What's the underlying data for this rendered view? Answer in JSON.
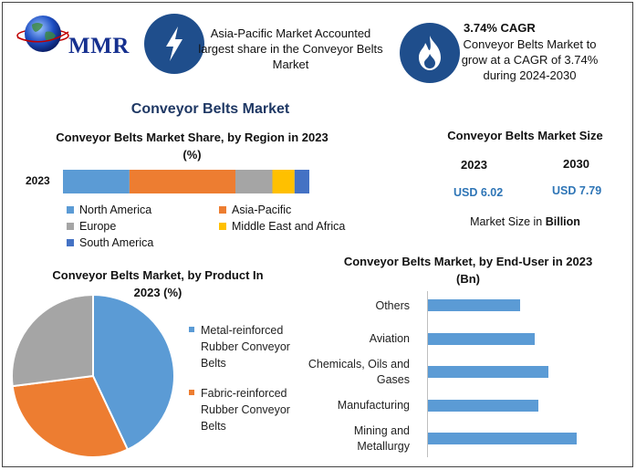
{
  "header": {
    "logo_text": "MMR",
    "box1": {
      "icon": "lightning-icon",
      "text": "Asia-Pacific Market Accounted largest share in the Conveyor Belts Market"
    },
    "box2": {
      "icon": "flame-icon",
      "headline": "3.74% CAGR",
      "text": "Conveyor Belts Market to grow at a CAGR of 3.74% during 2024-2030"
    }
  },
  "main_title": "Conveyor Belts Market",
  "market_size": {
    "title": "Conveyor Belts Market Size",
    "year_a": "2023",
    "year_b": "2030",
    "value_a": "USD 6.02",
    "value_b": "USD 7.79",
    "note_prefix": "Market Size in ",
    "note_unit": "Billion"
  },
  "colors": {
    "north_america": "#5b9bd5",
    "asia_pacific": "#ed7d31",
    "europe": "#a5a5a5",
    "mea": "#ffc000",
    "south_america": "#4472c4",
    "metal_reinforced": "#5b9bd5",
    "fabric_reinforced": "#ed7d31",
    "third_slice": "#a5a5a5",
    "end_user_bar": "#5b9bd5"
  },
  "chart_data": [
    {
      "type": "bar",
      "orientation": "horizontal-stacked",
      "title": "Conveyor Belts Market Share, by Region in 2023 (%)",
      "categories": [
        "2023"
      ],
      "series": [
        {
          "name": "North America",
          "values": [
            27
          ]
        },
        {
          "name": "Asia-Pacific",
          "values": [
            43
          ]
        },
        {
          "name": "Europe",
          "values": [
            15
          ]
        },
        {
          "name": "Middle East and Africa",
          "values": [
            9
          ]
        },
        {
          "name": "South America",
          "values": [
            6
          ]
        }
      ],
      "xlim": [
        0,
        100
      ],
      "legend_position": "bottom"
    },
    {
      "type": "pie",
      "title": "Conveyor Belts Market, by Product In 2023 (%)",
      "labels": [
        "Metal-reinforced Rubber Conveyor Belts",
        "Fabric-reinforced Rubber Conveyor Belts",
        ""
      ],
      "values": [
        43,
        30,
        27
      ],
      "legend_position": "right"
    },
    {
      "type": "bar",
      "orientation": "horizontal",
      "title": "Conveyor Belts Market, by End-User in 2023 (Bn)",
      "categories": [
        "Others",
        "Aviation",
        "Chemicals, Oils and Gases",
        "Manufacturing",
        "Mining and Metallurgy"
      ],
      "values": [
        0.98,
        1.14,
        1.28,
        1.18,
        1.58
      ],
      "xlim": [
        0,
        1.75
      ],
      "grid": false
    }
  ]
}
